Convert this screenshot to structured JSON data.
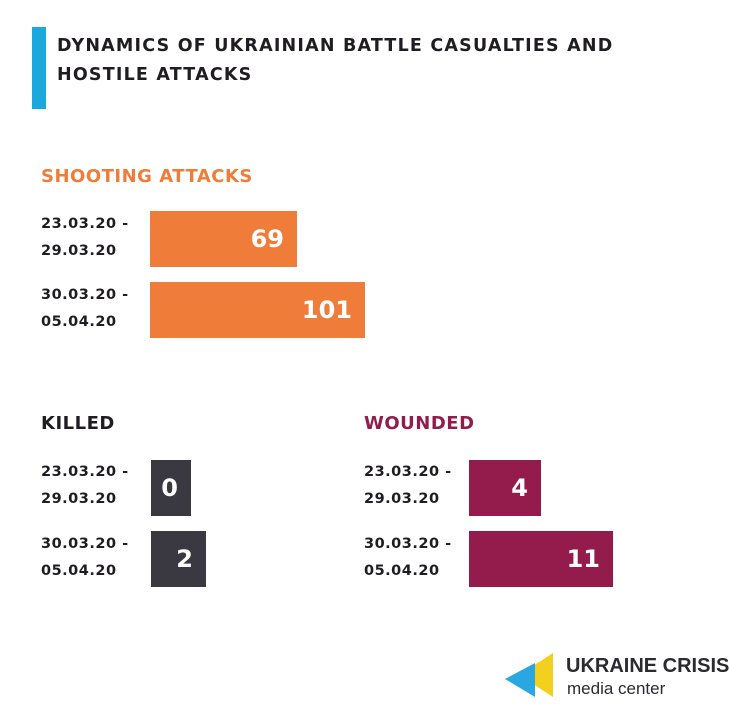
{
  "title": "DYNAMICS OF UKRAINIAN BATTLE CASUALTIES AND HOSTILE ATTACKS",
  "colors": {
    "accent": "#1aa9dd",
    "shooting": "#f07c3a",
    "killed": "#3a3841",
    "wounded": "#941c4c"
  },
  "chart_data": [
    {
      "type": "bar",
      "title": "SHOOTING ATTACKS",
      "categories": [
        "23.03.20 -\n29.03.20",
        "30.03.20 -\n05.04.20"
      ],
      "values": [
        69,
        101
      ]
    },
    {
      "type": "bar",
      "title": "KILLED",
      "categories": [
        "23.03.20 -\n29.03.20",
        "30.03.20 -\n05.04.20"
      ],
      "values": [
        0,
        2
      ]
    },
    {
      "type": "bar",
      "title": "WOUNDED",
      "categories": [
        "23.03.20 -\n29.03.20",
        "30.03.20 -\n05.04.20"
      ],
      "values": [
        4,
        11
      ]
    }
  ],
  "logo": {
    "line1": "UKRAINE CRISIS",
    "line2": "media center",
    "icon": "ukraine-crisis-logo-icon"
  }
}
